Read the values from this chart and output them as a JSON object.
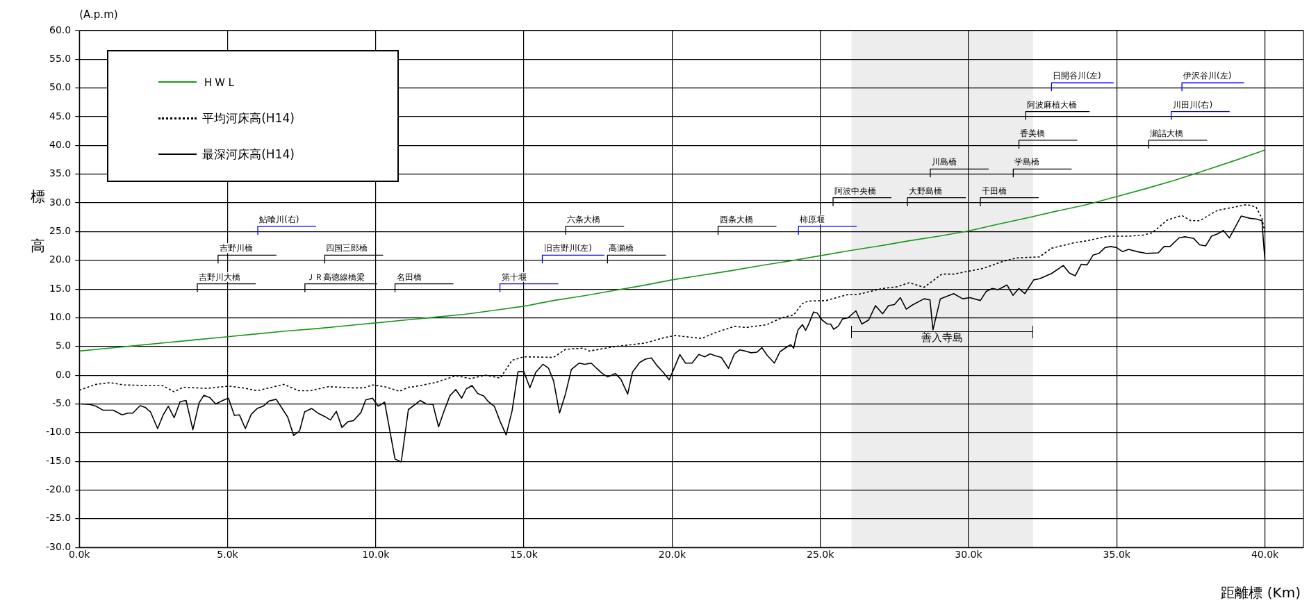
{
  "chart_data": {
    "type": "line",
    "xlabel": "距離標 (Km)",
    "ylabel": "標高",
    "xlim": [
      0,
      41.3
    ],
    "xticks": [
      {
        "value": 0,
        "label": "0.0k"
      },
      {
        "value": 5,
        "label": "5.0k"
      },
      {
        "value": 10,
        "label": "10.0k"
      },
      {
        "value": 15,
        "label": "15.0k"
      },
      {
        "value": 20,
        "label": "20.0k"
      },
      {
        "value": 25,
        "label": "25.0k"
      },
      {
        "value": 30,
        "label": "30.0k"
      },
      {
        "value": 35,
        "label": "35.0k"
      },
      {
        "value": 40,
        "label": "40.0k"
      }
    ],
    "ylim": [
      -30,
      60
    ],
    "yticks": [
      {
        "value": -30,
        "label": "-30.0"
      },
      {
        "value": -25,
        "label": "-25.0"
      },
      {
        "value": -20,
        "label": "-20.0"
      },
      {
        "value": -15,
        "label": "-15.0"
      },
      {
        "value": -10,
        "label": "-10.0"
      },
      {
        "value": -5,
        "label": "-5.0"
      },
      {
        "value": 0,
        "label": "0.0"
      },
      {
        "value": 5,
        "label": "5.0"
      },
      {
        "value": 10,
        "label": "10.0"
      },
      {
        "value": 15,
        "label": "15.0"
      },
      {
        "value": 20,
        "label": "20.0"
      },
      {
        "value": 25,
        "label": "25.0"
      },
      {
        "value": 30,
        "label": "30.0"
      },
      {
        "value": 35,
        "label": "35.0"
      },
      {
        "value": 40,
        "label": "40.0"
      },
      {
        "value": 45,
        "label": "45.0"
      },
      {
        "value": 50,
        "label": "50.0"
      },
      {
        "value": 55,
        "label": "55.0"
      },
      {
        "value": 60,
        "label": "60.0"
      }
    ],
    "grid": true,
    "legend": "top left",
    "marker": "none",
    "series": [
      {
        "name": "ＨＷＬ",
        "color": "#1a961a",
        "line_style": "solid",
        "x": [
          0,
          1,
          2,
          3,
          4,
          5,
          6,
          7,
          8,
          9,
          10,
          11,
          12,
          13,
          14,
          15,
          16,
          17,
          18,
          19,
          20,
          21,
          22,
          23,
          24,
          25,
          26,
          27,
          28,
          29,
          30,
          31,
          32,
          33,
          34,
          35,
          36,
          37,
          38,
          39,
          40
        ],
        "values": [
          4.2,
          4.7,
          5.2,
          5.7,
          6.2,
          6.7,
          7.2,
          7.7,
          8.1,
          8.6,
          9.1,
          9.6,
          10.1,
          10.6,
          11.3,
          12.0,
          13.0,
          13.8,
          14.7,
          15.6,
          16.6,
          17.4,
          18.2,
          19.1,
          19.9,
          20.8,
          21.7,
          22.5,
          23.4,
          24.2,
          25.1,
          26.3,
          27.4,
          28.6,
          29.7,
          31.1,
          32.5,
          34.0,
          35.7,
          37.4,
          39.2
        ]
      },
      {
        "name": "平均河床高(H14)",
        "color": "#000000",
        "line_style": "dotted",
        "x": [
          0,
          0.56,
          1.05,
          1.5,
          2.3,
          2.8,
          3.2,
          3.5,
          4.3,
          5.05,
          5.5,
          6.0,
          6.9,
          7.4,
          7.8,
          8.4,
          9.2,
          9.6,
          9.9,
          10.3,
          10.8,
          11.1,
          11.3,
          12.0,
          12.7,
          13.2,
          13.7,
          14.2,
          14.6,
          15.0,
          16.0,
          16.4,
          17.0,
          17.2,
          18.1,
          19.1,
          19.7,
          20.1,
          21.0,
          21.4,
          22.1,
          22.5,
          23.2,
          23.7,
          24.1,
          24.4,
          24.6,
          25.2,
          25.9,
          26.3,
          27.1,
          27.6,
          28.0,
          28.5,
          29.1,
          29.5,
          30.1,
          30.5,
          31.1,
          31.6,
          32.4,
          32.8,
          33.6,
          34.0,
          34.7,
          35.4,
          35.9,
          36.2,
          36.7,
          37.2,
          37.5,
          37.8,
          38.4,
          38.9,
          39.4,
          39.7,
          39.9,
          40.0
        ],
        "values": [
          -2.6,
          -1.6,
          -1.3,
          -1.7,
          -1.8,
          -1.8,
          -2.9,
          -2.1,
          -2.3,
          -1.9,
          -2.2,
          -2.7,
          -1.6,
          -2.7,
          -2.7,
          -2.0,
          -2.2,
          -2.2,
          -1.7,
          -2.0,
          -2.8,
          -2.1,
          -2.0,
          -1.3,
          -0.1,
          -0.6,
          0.0,
          -0.5,
          2.6,
          3.2,
          3.1,
          4.5,
          4.7,
          4.2,
          5.0,
          5.6,
          6.5,
          6.9,
          6.4,
          7.3,
          8.5,
          8.3,
          8.8,
          10.0,
          10.5,
          12.5,
          12.9,
          13.0,
          14.0,
          14.1,
          15.1,
          15.4,
          16.1,
          15.3,
          17.6,
          17.6,
          18.2,
          18.6,
          19.7,
          20.4,
          20.6,
          22.1,
          23.1,
          23.4,
          24.2,
          24.2,
          24.4,
          24.8,
          27.0,
          27.8,
          26.9,
          26.9,
          28.7,
          29.2,
          29.7,
          29.3,
          27.3,
          24.8
        ]
      },
      {
        "name": "最深河床高(H14)",
        "color": "#000000",
        "line_style": "solid",
        "x": [
          0.07,
          0.36,
          0.56,
          0.8,
          1.14,
          1.44,
          1.64,
          1.8,
          2.05,
          2.22,
          2.4,
          2.64,
          2.83,
          3.0,
          3.2,
          3.4,
          3.6,
          3.83,
          4.04,
          4.2,
          4.4,
          4.6,
          4.84,
          5.03,
          5.23,
          5.4,
          5.6,
          5.8,
          6.0,
          6.2,
          6.4,
          6.64,
          6.83,
          7.03,
          7.23,
          7.43,
          7.6,
          7.84,
          8.08,
          8.28,
          8.47,
          8.67,
          8.86,
          9.06,
          9.25,
          9.5,
          9.66,
          9.89,
          10.08,
          10.3,
          10.65,
          10.86,
          11.1,
          11.5,
          11.7,
          11.93,
          12.12,
          12.3,
          12.5,
          12.7,
          12.9,
          13.05,
          13.25,
          13.44,
          13.64,
          13.8,
          14.0,
          14.2,
          14.4,
          14.6,
          14.8,
          15.0,
          15.2,
          15.4,
          15.64,
          15.83,
          16.0,
          16.2,
          16.4,
          16.6,
          16.86,
          17.05,
          17.27,
          17.45,
          17.64,
          17.83,
          18.08,
          18.27,
          18.5,
          18.66,
          18.9,
          19.1,
          19.3,
          19.5,
          19.7,
          19.9,
          20.1,
          20.26,
          20.45,
          20.67,
          20.9,
          21.1,
          21.28,
          21.5,
          21.66,
          21.9,
          22.1,
          22.28,
          22.47,
          22.67,
          22.86,
          23.03,
          23.2,
          23.45,
          23.64,
          23.9,
          24.0,
          24.1,
          24.2,
          24.25,
          24.4,
          24.5,
          24.6,
          24.77,
          24.9,
          25.06,
          25.24,
          25.35,
          25.45,
          25.6,
          25.75,
          25.94,
          26.2,
          26.4,
          26.63,
          26.86,
          27.1,
          27.3,
          27.5,
          27.7,
          27.9,
          28.1,
          28.5,
          28.7,
          28.8,
          29.05,
          29.5,
          29.8,
          30.05,
          30.4,
          30.6,
          30.8,
          31.0,
          31.3,
          31.5,
          31.7,
          31.9,
          32.2,
          32.4,
          32.8,
          33.2,
          33.4,
          33.6,
          33.8,
          34.0,
          34.2,
          34.4,
          34.6,
          34.8,
          35.0,
          35.2,
          35.4,
          35.7,
          36.0,
          36.4,
          36.6,
          36.8,
          37.1,
          37.3,
          37.6,
          37.8,
          38.0,
          38.2,
          38.4,
          38.6,
          38.8,
          39.2,
          39.5,
          39.7,
          39.9,
          39.95,
          40.0
        ],
        "values": [
          -5.0,
          -5.1,
          -5.4,
          -6.1,
          -6.1,
          -6.9,
          -6.6,
          -6.6,
          -5.3,
          -5.6,
          -6.4,
          -9.3,
          -6.9,
          -5.4,
          -7.4,
          -4.6,
          -4.4,
          -9.5,
          -4.8,
          -3.5,
          -3.9,
          -5.0,
          -4.4,
          -4.0,
          -7.0,
          -6.9,
          -9.3,
          -6.8,
          -5.8,
          -5.4,
          -4.5,
          -4.2,
          -5.7,
          -7.3,
          -10.5,
          -9.7,
          -6.4,
          -5.8,
          -6.7,
          -7.2,
          -7.8,
          -6.3,
          -9.1,
          -8.1,
          -7.9,
          -6.5,
          -4.3,
          -4.0,
          -5.4,
          -4.7,
          -14.6,
          -15.1,
          -6.0,
          -4.4,
          -5.0,
          -5.1,
          -9.0,
          -6.3,
          -3.6,
          -2.5,
          -4.0,
          -2.4,
          -1.8,
          -3.2,
          -3.6,
          -4.6,
          -5.4,
          -8.1,
          -10.4,
          -6.2,
          0.6,
          0.6,
          -2.2,
          0.5,
          1.9,
          1.2,
          -1.0,
          -6.6,
          -3.3,
          1.0,
          2.1,
          1.9,
          2.1,
          1.2,
          0.3,
          -0.3,
          0.3,
          -0.7,
          -3.3,
          0.5,
          2.2,
          2.8,
          3.0,
          1.6,
          0.5,
          -0.8,
          1.6,
          3.6,
          2.1,
          2.1,
          3.6,
          3.2,
          3.7,
          3.3,
          3.1,
          1.2,
          3.7,
          4.4,
          4.2,
          3.9,
          4.0,
          4.8,
          3.5,
          2.1,
          4.1,
          5.0,
          5.3,
          4.7,
          7.0,
          7.9,
          8.8,
          7.8,
          8.8,
          11.0,
          10.8,
          9.6,
          8.9,
          8.9,
          8.0,
          8.5,
          9.8,
          10.0,
          11.2,
          8.9,
          9.6,
          12.1,
          10.7,
          12.1,
          12.3,
          13.5,
          11.5,
          12.2,
          13.3,
          13.1,
          7.9,
          13.3,
          14.2,
          13.3,
          13.5,
          13.0,
          14.6,
          15.1,
          14.9,
          15.7,
          13.9,
          15.1,
          14.2,
          16.6,
          16.8,
          17.7,
          19.1,
          17.8,
          17.3,
          19.3,
          19.2,
          20.9,
          21.2,
          22.2,
          22.4,
          22.2,
          21.5,
          21.9,
          21.5,
          21.2,
          21.3,
          22.4,
          22.4,
          23.9,
          24.1,
          23.8,
          22.7,
          22.5,
          24.2,
          24.6,
          25.2,
          23.9,
          27.7,
          27.3,
          27.2,
          26.9,
          23.3,
          20.1
        ]
      }
    ],
    "annotations": [
      "(A.p.m)"
    ],
    "ref_lines": [
      {
        "axis": "x",
        "value": 3.98,
        "label": "吉野川大橋",
        "color": "#000000"
      },
      {
        "axis": "x",
        "value": 4.68,
        "label": "吉野川橋",
        "color": "#000000"
      },
      {
        "axis": "x",
        "value": 6.02,
        "label": "鮎喰川(右)",
        "color": "#0000ff"
      },
      {
        "axis": "x",
        "value": 7.61,
        "label": "ＪＲ高徳線橋梁",
        "color": "#000000"
      },
      {
        "axis": "x",
        "value": 8.28,
        "label": "四国三郎橋",
        "color": "#000000"
      },
      {
        "axis": "x",
        "value": 10.65,
        "label": "名田橋",
        "color": "#000000"
      },
      {
        "axis": "x",
        "value": 14.19,
        "label": "第十堰",
        "color": "#0000ff"
      },
      {
        "axis": "x",
        "value": 15.62,
        "label": "旧吉野川(左)",
        "color": "#0000ff"
      },
      {
        "axis": "x",
        "value": 16.41,
        "label": "六条大橋",
        "color": "#000000"
      },
      {
        "axis": "x",
        "value": 17.82,
        "label": "高瀬橋",
        "color": "#000000"
      },
      {
        "axis": "x",
        "value": 21.55,
        "label": "西条大橋",
        "color": "#000000"
      },
      {
        "axis": "x",
        "value": 24.26,
        "label": "柿原堰",
        "color": "#0000ff"
      },
      {
        "axis": "x",
        "value": 25.43,
        "label": "阿波中央橋",
        "color": "#000000"
      },
      {
        "axis": "x",
        "value": 27.94,
        "label": "大野島橋",
        "color": "#000000"
      },
      {
        "axis": "x",
        "value": 28.71,
        "label": "川島橋",
        "color": "#000000"
      },
      {
        "axis": "x",
        "value": 30.4,
        "label": "千田橋",
        "color": "#000000"
      },
      {
        "axis": "x",
        "value": 31.51,
        "label": "学島橋",
        "color": "#000000"
      },
      {
        "axis": "x",
        "value": 31.7,
        "label": "香美橋",
        "color": "#000000"
      },
      {
        "axis": "x",
        "value": 31.93,
        "label": "阿波麻植大橋",
        "color": "#000000"
      },
      {
        "axis": "x",
        "value": 32.8,
        "label": "日開谷川(左)",
        "color": "#0000ff"
      },
      {
        "axis": "x",
        "value": 36.08,
        "label": "瀬詰大橋",
        "color": "#000000"
      },
      {
        "axis": "x",
        "value": 36.84,
        "label": "川田川(右)",
        "color": "#0000ff"
      },
      {
        "axis": "x",
        "value": 37.2,
        "label": "伊沢谷川(左)",
        "color": "#0000ff"
      }
    ],
    "bands": [
      {
        "axis": "x",
        "from": 26.05,
        "to": 32.18,
        "label": "善入寺島",
        "color": "#000000"
      }
    ]
  }
}
